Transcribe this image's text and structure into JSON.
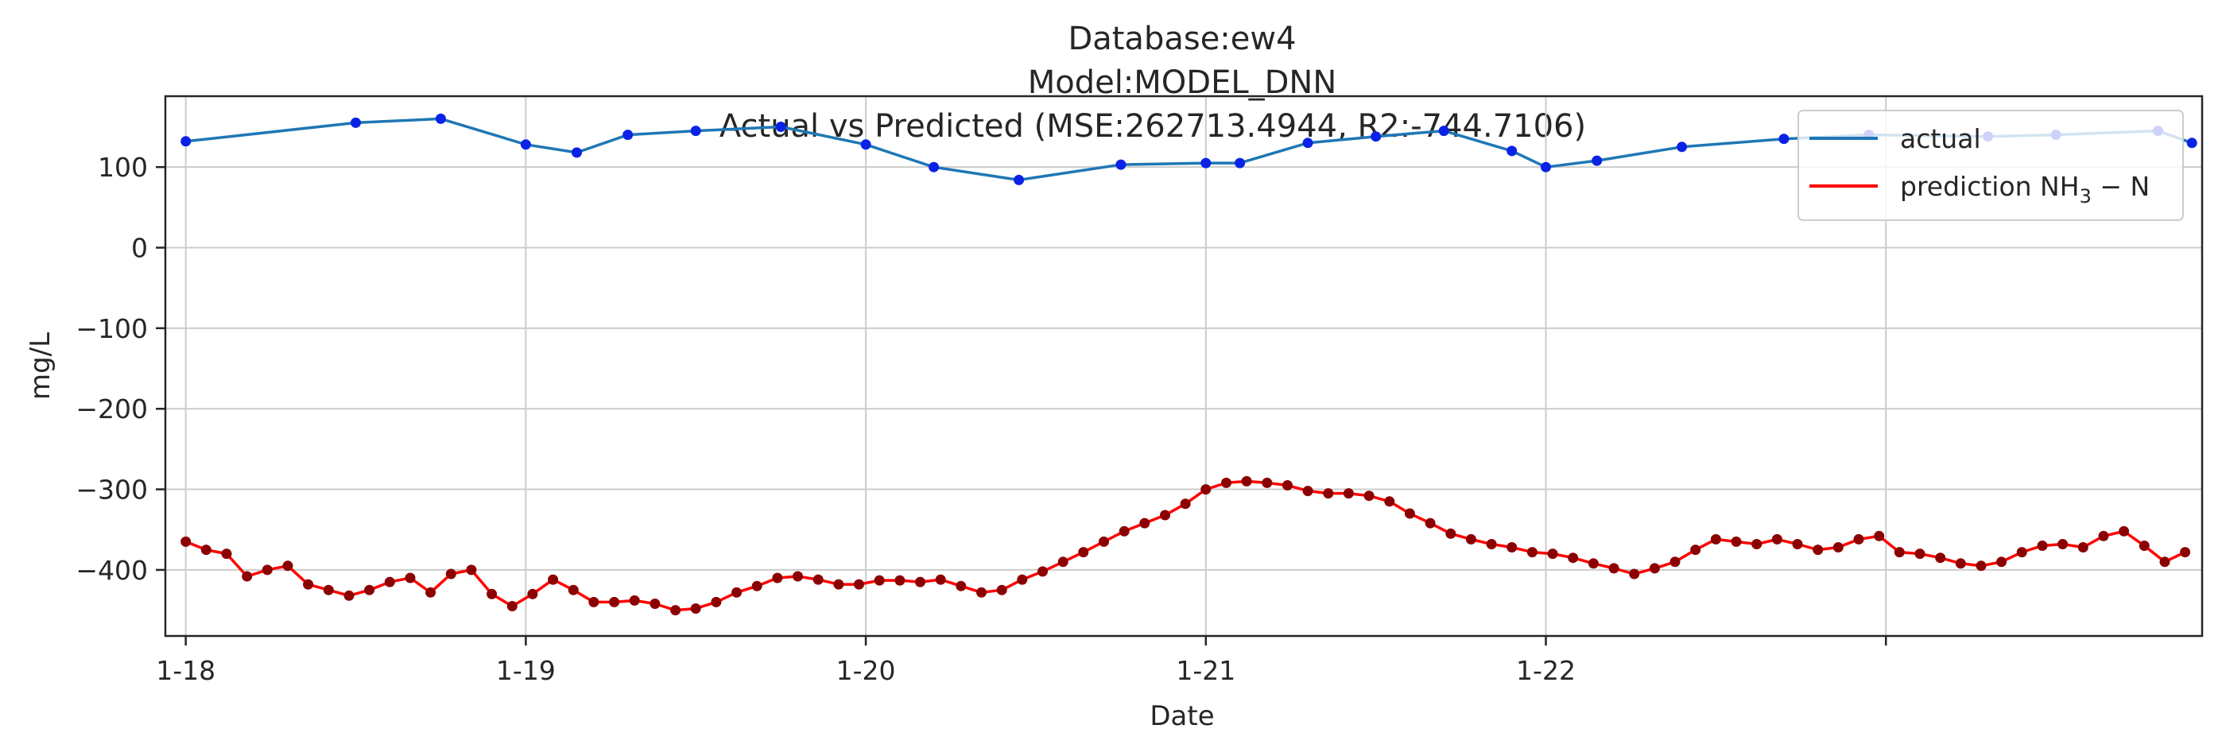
{
  "chart_data": {
    "type": "line",
    "title_lines": [
      "Database:ew4",
      "Model:MODEL_DNN",
      "Actual vs Predicted (MSE:262713.4944, R2:-744.7106)"
    ],
    "xlabel": "Date",
    "ylabel": "mg/L",
    "xlim": [
      -0.06,
      5.93
    ],
    "ylim": [
      -482,
      188
    ],
    "x_ticks": [
      0,
      1,
      2,
      3,
      4,
      5
    ],
    "x_tick_labels": [
      "1-18",
      "1-19",
      "1-20",
      "1-21",
      "1-22",
      ""
    ],
    "y_ticks": [
      100,
      0,
      -100,
      -200,
      -300,
      -400
    ],
    "y_tick_labels": [
      "100",
      "−100",
      "−200",
      "−300",
      "−400"
    ],
    "y_tick_labels_all": [
      "100",
      "0",
      "−100",
      "−200",
      "−300",
      "−400"
    ],
    "grid": true,
    "legend_position": "top-right",
    "colors": {
      "actual_line": "#1f77b4",
      "actual_points": "#0a22e6",
      "prediction_line": "#ff0000",
      "prediction_points": "#8b0000",
      "grid": "#cccccc",
      "axes": "#262626"
    },
    "series": [
      {
        "name": "actual",
        "x": [
          0,
          0.5,
          0.75,
          1,
          1.15,
          1.3,
          1.5,
          1.75,
          2,
          2.2,
          2.45,
          2.75,
          3,
          3.1,
          3.3,
          3.5,
          3.7,
          3.9,
          4.0,
          4.15,
          4.4,
          4.7,
          4.95,
          5.3,
          5.5,
          5.8,
          5.9
        ],
        "y": [
          132,
          155,
          160,
          128,
          118,
          140,
          145,
          150,
          128,
          100,
          84,
          103,
          105,
          105,
          130,
          138,
          145,
          120,
          100,
          108,
          125,
          135,
          140,
          138,
          140,
          145,
          130
        ]
      },
      {
        "name": "prediction NH₃ − N",
        "x": [
          0,
          0.06,
          0.12,
          0.18,
          0.24,
          0.3,
          0.36,
          0.42,
          0.48,
          0.54,
          0.6,
          0.66,
          0.72,
          0.78,
          0.84,
          0.9,
          0.96,
          1.02,
          1.08,
          1.14,
          1.2,
          1.26,
          1.32,
          1.38,
          1.44,
          1.5,
          1.56,
          1.62,
          1.68,
          1.74,
          1.8,
          1.86,
          1.92,
          1.98,
          2.04,
          2.1,
          2.16,
          2.22,
          2.28,
          2.34,
          2.4,
          2.46,
          2.52,
          2.58,
          2.64,
          2.7,
          2.76,
          2.82,
          2.88,
          2.94,
          3.0,
          3.06,
          3.12,
          3.18,
          3.24,
          3.3,
          3.36,
          3.42,
          3.48,
          3.54,
          3.6,
          3.66,
          3.72,
          3.78,
          3.84,
          3.9,
          3.96,
          4.02,
          4.08,
          4.14,
          4.2,
          4.26,
          4.32,
          4.38,
          4.44,
          4.5,
          4.56,
          4.62,
          4.68,
          4.74,
          4.8,
          4.86,
          4.92,
          4.98,
          5.04,
          5.1,
          5.16,
          5.22,
          5.28,
          5.34,
          5.4,
          5.46,
          5.52,
          5.58,
          5.64,
          5.7,
          5.76,
          5.82,
          5.88
        ],
        "y": [
          -365,
          -375,
          -380,
          -408,
          -400,
          -395,
          -418,
          -425,
          -432,
          -425,
          -415,
          -410,
          -428,
          -405,
          -400,
          -430,
          -445,
          -430,
          -412,
          -425,
          -440,
          -440,
          -438,
          -442,
          -450,
          -448,
          -440,
          -428,
          -420,
          -410,
          -408,
          -412,
          -418,
          -418,
          -413,
          -413,
          -415,
          -412,
          -420,
          -428,
          -425,
          -412,
          -402,
          -390,
          -378,
          -365,
          -352,
          -342,
          -332,
          -318,
          -300,
          -292,
          -290,
          -292,
          -295,
          -302,
          -305,
          -305,
          -308,
          -315,
          -330,
          -342,
          -355,
          -362,
          -368,
          -372,
          -378,
          -380,
          -385,
          -392,
          -398,
          -405,
          -398,
          -390,
          -375,
          -362,
          -365,
          -368,
          -362,
          -368,
          -375,
          -372,
          -362,
          -358,
          -378,
          -380,
          -385,
          -392,
          -395,
          -390,
          -378,
          -370,
          -368,
          -372,
          -358,
          -352,
          -370,
          -390,
          -378
        ]
      }
    ]
  },
  "legend": {
    "actual_label": "actual",
    "prediction_label_main": "prediction NH",
    "prediction_label_sub": "3",
    "prediction_label_tail": " − N"
  }
}
